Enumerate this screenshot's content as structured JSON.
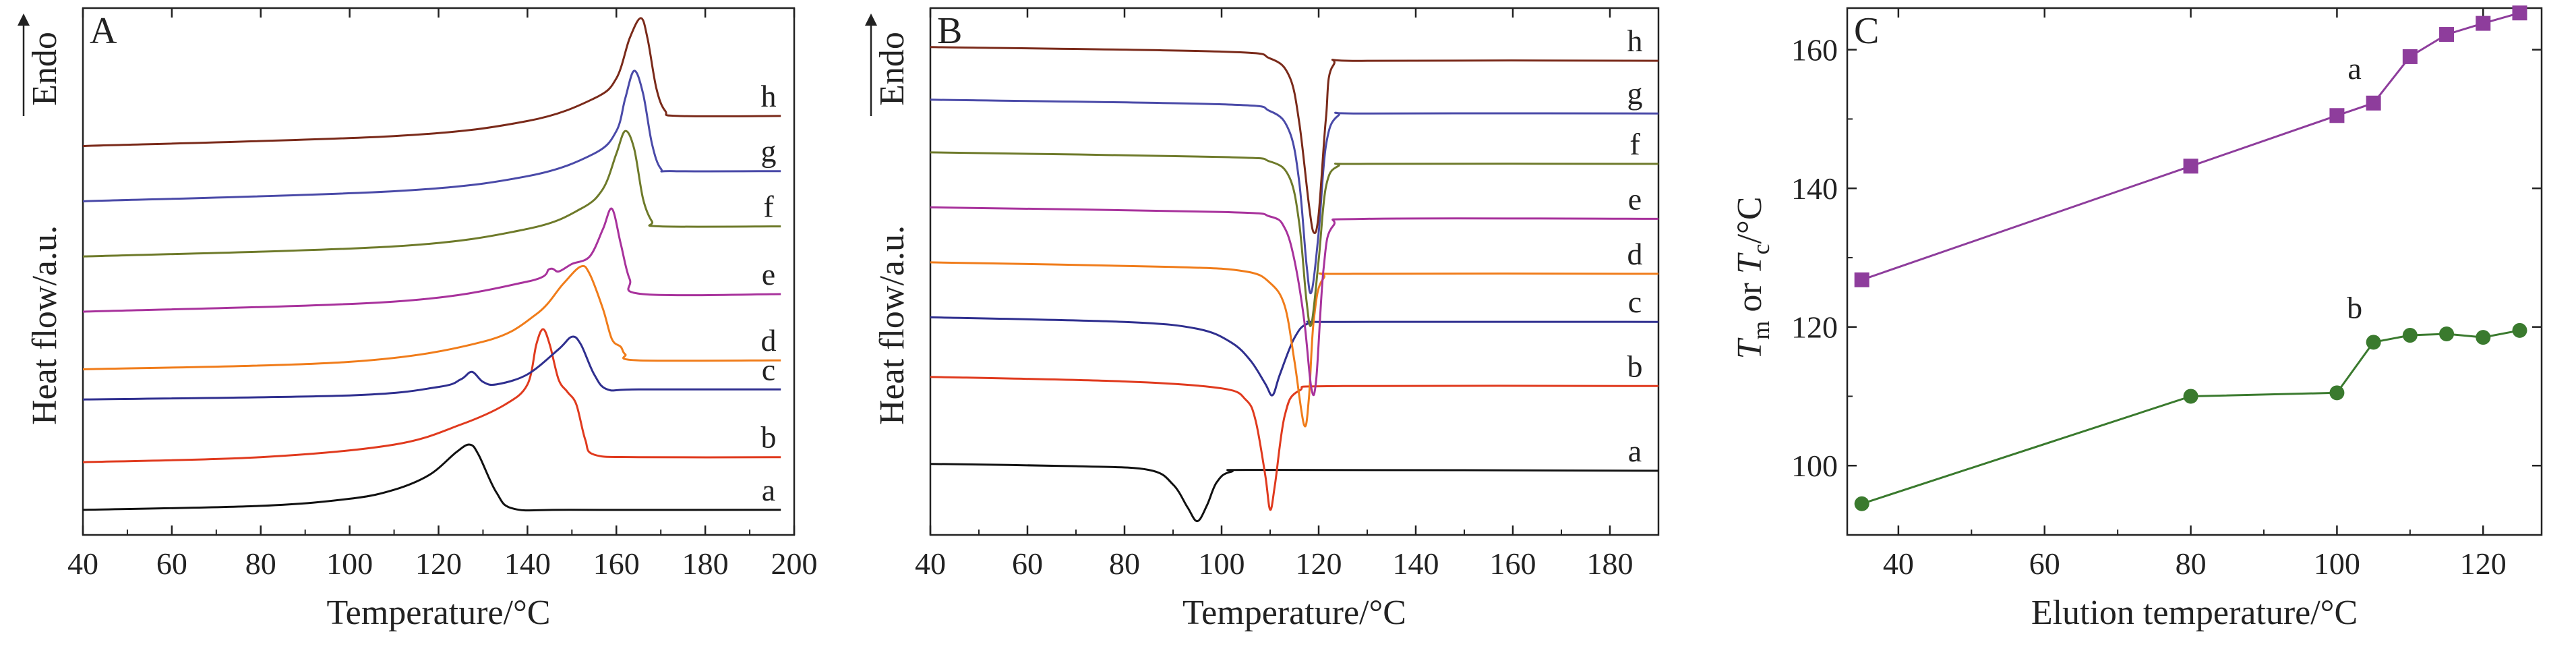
{
  "chart_data": [
    {
      "type": "line",
      "panel_label": "A",
      "title": "",
      "xlabel": "Temperature/°C",
      "ylabel": "Heat flow/a.u.",
      "y_direction_label": "Endo",
      "xlim": [
        40,
        200
      ],
      "xticks": [
        40,
        60,
        80,
        100,
        120,
        140,
        160,
        180,
        200
      ],
      "y_units": "arbitrary (curves vertically offset)",
      "series": [
        {
          "name": "a",
          "color": "#111111",
          "baseline": 0.0,
          "points": [
            [
              40,
              0.0
            ],
            [
              80,
              0.08
            ],
            [
              100,
              0.22
            ],
            [
              110,
              0.4
            ],
            [
              118,
              0.7
            ],
            [
              124,
              1.15
            ],
            [
              127,
              1.3
            ],
            [
              129,
              1.1
            ],
            [
              133,
              0.35
            ],
            [
              137,
              0.02
            ],
            [
              150,
              0.0
            ],
            [
              197,
              0.0
            ]
          ]
        },
        {
          "name": "b",
          "color": "#e03a1e",
          "baseline": 0.95,
          "points": [
            [
              40,
              0.95
            ],
            [
              80,
              1.05
            ],
            [
              110,
              1.3
            ],
            [
              125,
              1.7
            ],
            [
              135,
              2.1
            ],
            [
              140,
              2.5
            ],
            [
              142,
              3.3
            ],
            [
              143.5,
              3.6
            ],
            [
              145,
              3.3
            ],
            [
              147,
              2.6
            ],
            [
              149,
              2.35
            ],
            [
              151,
              2.1
            ],
            [
              153,
              1.4
            ],
            [
              155,
              1.1
            ],
            [
              165,
              1.05
            ],
            [
              197,
              1.05
            ]
          ]
        },
        {
          "name": "c",
          "color": "#2f2f8f",
          "baseline": 2.2,
          "points": [
            [
              40,
              2.2
            ],
            [
              100,
              2.28
            ],
            [
              120,
              2.45
            ],
            [
              125,
              2.6
            ],
            [
              127.5,
              2.75
            ],
            [
              130,
              2.55
            ],
            [
              133,
              2.5
            ],
            [
              140,
              2.7
            ],
            [
              147,
              3.2
            ],
            [
              150,
              3.45
            ],
            [
              152,
              3.3
            ],
            [
              155,
              2.7
            ],
            [
              158,
              2.4
            ],
            [
              165,
              2.4
            ],
            [
              197,
              2.4
            ]
          ]
        },
        {
          "name": "d",
          "color": "#f07c1a",
          "baseline": 2.8,
          "points": [
            [
              40,
              2.8
            ],
            [
              100,
              2.95
            ],
            [
              130,
              3.35
            ],
            [
              142,
              3.9
            ],
            [
              148,
              4.5
            ],
            [
              152,
              4.85
            ],
            [
              154,
              4.7
            ],
            [
              157,
              4.0
            ],
            [
              159,
              3.4
            ],
            [
              161,
              3.25
            ],
            [
              162,
              3.1
            ],
            [
              165,
              2.98
            ],
            [
              197,
              2.98
            ]
          ]
        },
        {
          "name": "e",
          "color": "#a8329c",
          "baseline": 3.95,
          "points": [
            [
              40,
              3.95
            ],
            [
              110,
              4.15
            ],
            [
              140,
              4.55
            ],
            [
              145,
              4.8
            ],
            [
              147,
              4.75
            ],
            [
              150,
              4.9
            ],
            [
              154,
              5.05
            ],
            [
              157,
              5.6
            ],
            [
              159,
              6.0
            ],
            [
              161,
              5.3
            ],
            [
              163,
              4.6
            ],
            [
              166,
              4.3
            ],
            [
              197,
              4.3
            ]
          ]
        },
        {
          "name": "f",
          "color": "#6e7a2a",
          "baseline": 5.05,
          "points": [
            [
              40,
              5.05
            ],
            [
              110,
              5.25
            ],
            [
              140,
              5.6
            ],
            [
              152,
              6.0
            ],
            [
              157,
              6.4
            ],
            [
              160,
              7.1
            ],
            [
              162,
              7.55
            ],
            [
              164,
              7.2
            ],
            [
              166,
              6.2
            ],
            [
              168,
              5.75
            ],
            [
              170,
              5.65
            ],
            [
              197,
              5.65
            ]
          ]
        },
        {
          "name": "g",
          "color": "#4a4aa8",
          "baseline": 6.15,
          "points": [
            [
              40,
              6.15
            ],
            [
              110,
              6.35
            ],
            [
              140,
              6.65
            ],
            [
              155,
              7.1
            ],
            [
              160,
              7.55
            ],
            [
              162,
              8.2
            ],
            [
              164,
              8.75
            ],
            [
              166,
              8.3
            ],
            [
              168,
              7.3
            ],
            [
              170,
              6.8
            ],
            [
              173,
              6.75
            ],
            [
              197,
              6.75
            ]
          ]
        },
        {
          "name": "h",
          "color": "#7a2a1a",
          "baseline": 7.25,
          "points": [
            [
              40,
              7.25
            ],
            [
              110,
              7.45
            ],
            [
              140,
              7.75
            ],
            [
              155,
              8.2
            ],
            [
              160,
              8.6
            ],
            [
              163,
              9.4
            ],
            [
              165.5,
              9.8
            ],
            [
              167,
              9.4
            ],
            [
              169,
              8.4
            ],
            [
              171,
              7.95
            ],
            [
              174,
              7.85
            ],
            [
              197,
              7.85
            ]
          ]
        }
      ]
    },
    {
      "type": "line",
      "panel_label": "B",
      "title": "",
      "xlabel": "Temperature/°C",
      "ylabel": "Heat flow/a.u.",
      "y_direction_label": "Endo",
      "xlim": [
        40,
        190
      ],
      "xticks": [
        40,
        60,
        80,
        100,
        120,
        140,
        160,
        180
      ],
      "y_units": "arbitrary (curves vertically offset)",
      "series": [
        {
          "name": "a",
          "color": "#111111",
          "baseline": 1.25,
          "points": [
            [
              40,
              1.35
            ],
            [
              70,
              1.3
            ],
            [
              85,
              1.22
            ],
            [
              90,
              0.9
            ],
            [
              93,
              0.4
            ],
            [
              95,
              0.1
            ],
            [
              97,
              0.45
            ],
            [
              99,
              0.95
            ],
            [
              102,
              1.18
            ],
            [
              110,
              1.22
            ],
            [
              190,
              1.2
            ]
          ]
        },
        {
          "name": "b",
          "color": "#e03a1e",
          "baseline": 3.25,
          "points": [
            [
              40,
              3.25
            ],
            [
              80,
              3.15
            ],
            [
              100,
              3.0
            ],
            [
              105,
              2.75
            ],
            [
              107,
              2.3
            ],
            [
              109,
              1.1
            ],
            [
              110,
              0.35
            ],
            [
              111,
              0.9
            ],
            [
              113,
              2.4
            ],
            [
              116,
              2.95
            ],
            [
              125,
              3.05
            ],
            [
              190,
              3.05
            ]
          ]
        },
        {
          "name": "c",
          "color": "#2f2f8f",
          "baseline": 4.55,
          "points": [
            [
              40,
              4.55
            ],
            [
              80,
              4.45
            ],
            [
              95,
              4.3
            ],
            [
              102,
              4.0
            ],
            [
              106,
              3.6
            ],
            [
              109,
              3.1
            ],
            [
              110.5,
              2.85
            ],
            [
              112,
              3.3
            ],
            [
              115,
              4.1
            ],
            [
              118,
              4.42
            ],
            [
              125,
              4.45
            ],
            [
              190,
              4.45
            ]
          ]
        },
        {
          "name": "d",
          "color": "#f07c1a",
          "baseline": 5.75,
          "points": [
            [
              40,
              5.75
            ],
            [
              90,
              5.65
            ],
            [
              105,
              5.55
            ],
            [
              110,
              5.3
            ],
            [
              113,
              4.8
            ],
            [
              115,
              3.6
            ],
            [
              117,
              2.2
            ],
            [
              118,
              2.8
            ],
            [
              119,
              4.5
            ],
            [
              121,
              5.4
            ],
            [
              127,
              5.5
            ],
            [
              190,
              5.5
            ]
          ]
        },
        {
          "name": "e",
          "color": "#a8329c",
          "baseline": 6.95,
          "points": [
            [
              40,
              6.95
            ],
            [
              100,
              6.85
            ],
            [
              110,
              6.75
            ],
            [
              113,
              6.5
            ],
            [
              115,
              5.8
            ],
            [
              117,
              4.5
            ],
            [
              118.5,
              3.0
            ],
            [
              119.5,
              3.2
            ],
            [
              121,
              5.6
            ],
            [
              123,
              6.55
            ],
            [
              130,
              6.7
            ],
            [
              190,
              6.7
            ]
          ]
        },
        {
          "name": "f",
          "color": "#6e7a2a",
          "baseline": 8.15,
          "points": [
            [
              40,
              8.15
            ],
            [
              100,
              8.05
            ],
            [
              110,
              7.95
            ],
            [
              114,
              7.6
            ],
            [
              116,
              6.6
            ],
            [
              117.5,
              4.9
            ],
            [
              118.5,
              4.4
            ],
            [
              120,
              5.8
            ],
            [
              121.5,
              7.4
            ],
            [
              124,
              7.85
            ],
            [
              130,
              7.9
            ],
            [
              190,
              7.9
            ]
          ]
        },
        {
          "name": "g",
          "color": "#4a4aa8",
          "baseline": 9.3,
          "points": [
            [
              40,
              9.3
            ],
            [
              100,
              9.2
            ],
            [
              110,
              9.05
            ],
            [
              114,
              8.6
            ],
            [
              116,
              7.5
            ],
            [
              117.5,
              5.7
            ],
            [
              118.5,
              5.1
            ],
            [
              120,
              6.4
            ],
            [
              121.5,
              8.3
            ],
            [
              124,
              8.95
            ],
            [
              130,
              9.0
            ],
            [
              190,
              9.0
            ]
          ]
        },
        {
          "name": "h",
          "color": "#7a2a1a",
          "baseline": 10.45,
          "points": [
            [
              40,
              10.45
            ],
            [
              100,
              10.35
            ],
            [
              110,
              10.2
            ],
            [
              114,
              9.8
            ],
            [
              116,
              8.8
            ],
            [
              118,
              7.0
            ],
            [
              119,
              6.4
            ],
            [
              120,
              6.8
            ],
            [
              121.5,
              8.9
            ],
            [
              123,
              10.05
            ],
            [
              130,
              10.15
            ],
            [
              190,
              10.15
            ]
          ]
        }
      ]
    },
    {
      "type": "line",
      "panel_label": "C",
      "title": "",
      "xlabel": "Elution temperature/°C",
      "ylabel_parts": [
        "T",
        "m",
        " or ",
        "T",
        "c",
        "/°C"
      ],
      "xlim": [
        33,
        128
      ],
      "ylim": [
        90,
        166
      ],
      "xticks": [
        40,
        60,
        80,
        100,
        120
      ],
      "yticks": [
        100,
        120,
        140,
        160
      ],
      "series": [
        {
          "name": "a",
          "marker": "square",
          "color": "#8e3d9c",
          "x": [
            35,
            80,
            100,
            105,
            110,
            115,
            120,
            125
          ],
          "y": [
            126.8,
            143.2,
            150.5,
            152.3,
            159.0,
            162.2,
            163.8,
            165.3
          ]
        },
        {
          "name": "b",
          "marker": "circle",
          "color": "#3a7a2e",
          "x": [
            35,
            80,
            100,
            105,
            110,
            115,
            120,
            125
          ],
          "y": [
            94.5,
            110.0,
            110.5,
            117.8,
            118.8,
            119.0,
            118.5,
            119.5
          ]
        }
      ]
    }
  ]
}
